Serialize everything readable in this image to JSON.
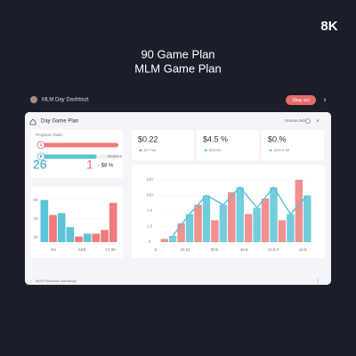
{
  "badge": "8K",
  "header": {
    "title": "90 Game Plan",
    "subtitle": "MLM Game Plan"
  },
  "toolbar": {
    "title": "MLM Day Dashbozt",
    "button": "Sbay act",
    "arrow": "›"
  },
  "card": {
    "title": "Day Game Plan",
    "actions": "Renew dets",
    "footer": "MLM Planeack Dashboay"
  },
  "progress": {
    "title": "Progress Tasks",
    "rows": [
      {
        "value": 100,
        "color": "#f07b7b",
        "marker": "1"
      },
      {
        "value": 72,
        "color": "#5bc4d8",
        "marker": "6",
        "label": "Resolve"
      }
    ],
    "big": "26",
    "count": "1",
    "delta": "- $8 %"
  },
  "stats": [
    {
      "value": "$0.22",
      "note": "$17 NA",
      "color": "#f07b7b"
    },
    {
      "value": "$4.5 %",
      "note": "$5/0/26",
      "color": "#5bc4d8"
    },
    {
      "value": "$0.%",
      "note": "$3/0.5 dB",
      "color": "#5bc4d8"
    }
  ],
  "bar_chart": {
    "type": "bar",
    "values": [
      60,
      44,
      46,
      31,
      21,
      24,
      24,
      28,
      57
    ],
    "colors": [
      "#5bc4d8",
      "#f07b7b",
      "#5bc4d8",
      "#5bc4d8",
      "#f07b7b",
      "#5bc4d8",
      "#f07b7b",
      "#f07b7b",
      "#f07b7b"
    ],
    "ylim": [
      15,
      65
    ],
    "yticks": [
      20,
      40,
      60
    ],
    "x_labels": [
      "N8",
      "CE8",
      "10 88"
    ]
  },
  "area_chart": {
    "type": "bar",
    "series": [
      {
        "color": "#f07b7b",
        "values": [
          5,
          30,
          60,
          35,
          80,
          45,
          70,
          35,
          100
        ]
      },
      {
        "color": "#5bc4d8",
        "values": [
          10,
          45,
          75,
          60,
          88,
          55,
          88,
          45,
          75
        ]
      }
    ],
    "line_color": "#5bc4d8",
    "ylim": [
      0,
      110
    ],
    "yticks": [
      0,
      {
        "value": 25,
        "label": "1.0"
      },
      {
        "value": 50,
        "label": "1.0"
      },
      {
        "value": 75,
        "label": "100"
      },
      {
        "value": 100,
        "label": "100"
      }
    ],
    "x_labels": [
      "0",
      "20.61",
      "00:5",
      "40.8",
      "10.5 2",
      "10.8"
    ]
  }
}
